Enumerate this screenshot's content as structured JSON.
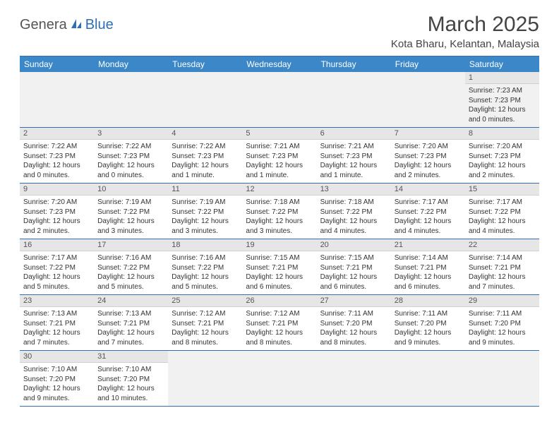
{
  "logo": {
    "part1": "Genera",
    "part2": "Blue"
  },
  "title": "March 2025",
  "location": "Kota Bharu, Kelantan, Malaysia",
  "colors": {
    "header_bg": "#3c87c7",
    "header_border": "#2e6fb5",
    "daynum_bg": "#e6e6e6",
    "cell_border": "#2e6fb5",
    "logo_gray": "#555555",
    "logo_blue": "#2e6fb5"
  },
  "weekdays": [
    "Sunday",
    "Monday",
    "Tuesday",
    "Wednesday",
    "Thursday",
    "Friday",
    "Saturday"
  ],
  "weeks": [
    [
      null,
      null,
      null,
      null,
      null,
      null,
      {
        "n": "1",
        "sr": "Sunrise: 7:23 AM",
        "ss": "Sunset: 7:23 PM",
        "dl": "Daylight: 12 hours and 0 minutes."
      }
    ],
    [
      {
        "n": "2",
        "sr": "Sunrise: 7:22 AM",
        "ss": "Sunset: 7:23 PM",
        "dl": "Daylight: 12 hours and 0 minutes."
      },
      {
        "n": "3",
        "sr": "Sunrise: 7:22 AM",
        "ss": "Sunset: 7:23 PM",
        "dl": "Daylight: 12 hours and 0 minutes."
      },
      {
        "n": "4",
        "sr": "Sunrise: 7:22 AM",
        "ss": "Sunset: 7:23 PM",
        "dl": "Daylight: 12 hours and 1 minute."
      },
      {
        "n": "5",
        "sr": "Sunrise: 7:21 AM",
        "ss": "Sunset: 7:23 PM",
        "dl": "Daylight: 12 hours and 1 minute."
      },
      {
        "n": "6",
        "sr": "Sunrise: 7:21 AM",
        "ss": "Sunset: 7:23 PM",
        "dl": "Daylight: 12 hours and 1 minute."
      },
      {
        "n": "7",
        "sr": "Sunrise: 7:20 AM",
        "ss": "Sunset: 7:23 PM",
        "dl": "Daylight: 12 hours and 2 minutes."
      },
      {
        "n": "8",
        "sr": "Sunrise: 7:20 AM",
        "ss": "Sunset: 7:23 PM",
        "dl": "Daylight: 12 hours and 2 minutes."
      }
    ],
    [
      {
        "n": "9",
        "sr": "Sunrise: 7:20 AM",
        "ss": "Sunset: 7:23 PM",
        "dl": "Daylight: 12 hours and 2 minutes."
      },
      {
        "n": "10",
        "sr": "Sunrise: 7:19 AM",
        "ss": "Sunset: 7:22 PM",
        "dl": "Daylight: 12 hours and 3 minutes."
      },
      {
        "n": "11",
        "sr": "Sunrise: 7:19 AM",
        "ss": "Sunset: 7:22 PM",
        "dl": "Daylight: 12 hours and 3 minutes."
      },
      {
        "n": "12",
        "sr": "Sunrise: 7:18 AM",
        "ss": "Sunset: 7:22 PM",
        "dl": "Daylight: 12 hours and 3 minutes."
      },
      {
        "n": "13",
        "sr": "Sunrise: 7:18 AM",
        "ss": "Sunset: 7:22 PM",
        "dl": "Daylight: 12 hours and 4 minutes."
      },
      {
        "n": "14",
        "sr": "Sunrise: 7:17 AM",
        "ss": "Sunset: 7:22 PM",
        "dl": "Daylight: 12 hours and 4 minutes."
      },
      {
        "n": "15",
        "sr": "Sunrise: 7:17 AM",
        "ss": "Sunset: 7:22 PM",
        "dl": "Daylight: 12 hours and 4 minutes."
      }
    ],
    [
      {
        "n": "16",
        "sr": "Sunrise: 7:17 AM",
        "ss": "Sunset: 7:22 PM",
        "dl": "Daylight: 12 hours and 5 minutes."
      },
      {
        "n": "17",
        "sr": "Sunrise: 7:16 AM",
        "ss": "Sunset: 7:22 PM",
        "dl": "Daylight: 12 hours and 5 minutes."
      },
      {
        "n": "18",
        "sr": "Sunrise: 7:16 AM",
        "ss": "Sunset: 7:22 PM",
        "dl": "Daylight: 12 hours and 5 minutes."
      },
      {
        "n": "19",
        "sr": "Sunrise: 7:15 AM",
        "ss": "Sunset: 7:21 PM",
        "dl": "Daylight: 12 hours and 6 minutes."
      },
      {
        "n": "20",
        "sr": "Sunrise: 7:15 AM",
        "ss": "Sunset: 7:21 PM",
        "dl": "Daylight: 12 hours and 6 minutes."
      },
      {
        "n": "21",
        "sr": "Sunrise: 7:14 AM",
        "ss": "Sunset: 7:21 PM",
        "dl": "Daylight: 12 hours and 6 minutes."
      },
      {
        "n": "22",
        "sr": "Sunrise: 7:14 AM",
        "ss": "Sunset: 7:21 PM",
        "dl": "Daylight: 12 hours and 7 minutes."
      }
    ],
    [
      {
        "n": "23",
        "sr": "Sunrise: 7:13 AM",
        "ss": "Sunset: 7:21 PM",
        "dl": "Daylight: 12 hours and 7 minutes."
      },
      {
        "n": "24",
        "sr": "Sunrise: 7:13 AM",
        "ss": "Sunset: 7:21 PM",
        "dl": "Daylight: 12 hours and 7 minutes."
      },
      {
        "n": "25",
        "sr": "Sunrise: 7:12 AM",
        "ss": "Sunset: 7:21 PM",
        "dl": "Daylight: 12 hours and 8 minutes."
      },
      {
        "n": "26",
        "sr": "Sunrise: 7:12 AM",
        "ss": "Sunset: 7:21 PM",
        "dl": "Daylight: 12 hours and 8 minutes."
      },
      {
        "n": "27",
        "sr": "Sunrise: 7:11 AM",
        "ss": "Sunset: 7:20 PM",
        "dl": "Daylight: 12 hours and 8 minutes."
      },
      {
        "n": "28",
        "sr": "Sunrise: 7:11 AM",
        "ss": "Sunset: 7:20 PM",
        "dl": "Daylight: 12 hours and 9 minutes."
      },
      {
        "n": "29",
        "sr": "Sunrise: 7:11 AM",
        "ss": "Sunset: 7:20 PM",
        "dl": "Daylight: 12 hours and 9 minutes."
      }
    ],
    [
      {
        "n": "30",
        "sr": "Sunrise: 7:10 AM",
        "ss": "Sunset: 7:20 PM",
        "dl": "Daylight: 12 hours and 9 minutes."
      },
      {
        "n": "31",
        "sr": "Sunrise: 7:10 AM",
        "ss": "Sunset: 7:20 PM",
        "dl": "Daylight: 12 hours and 10 minutes."
      },
      null,
      null,
      null,
      null,
      null
    ]
  ]
}
